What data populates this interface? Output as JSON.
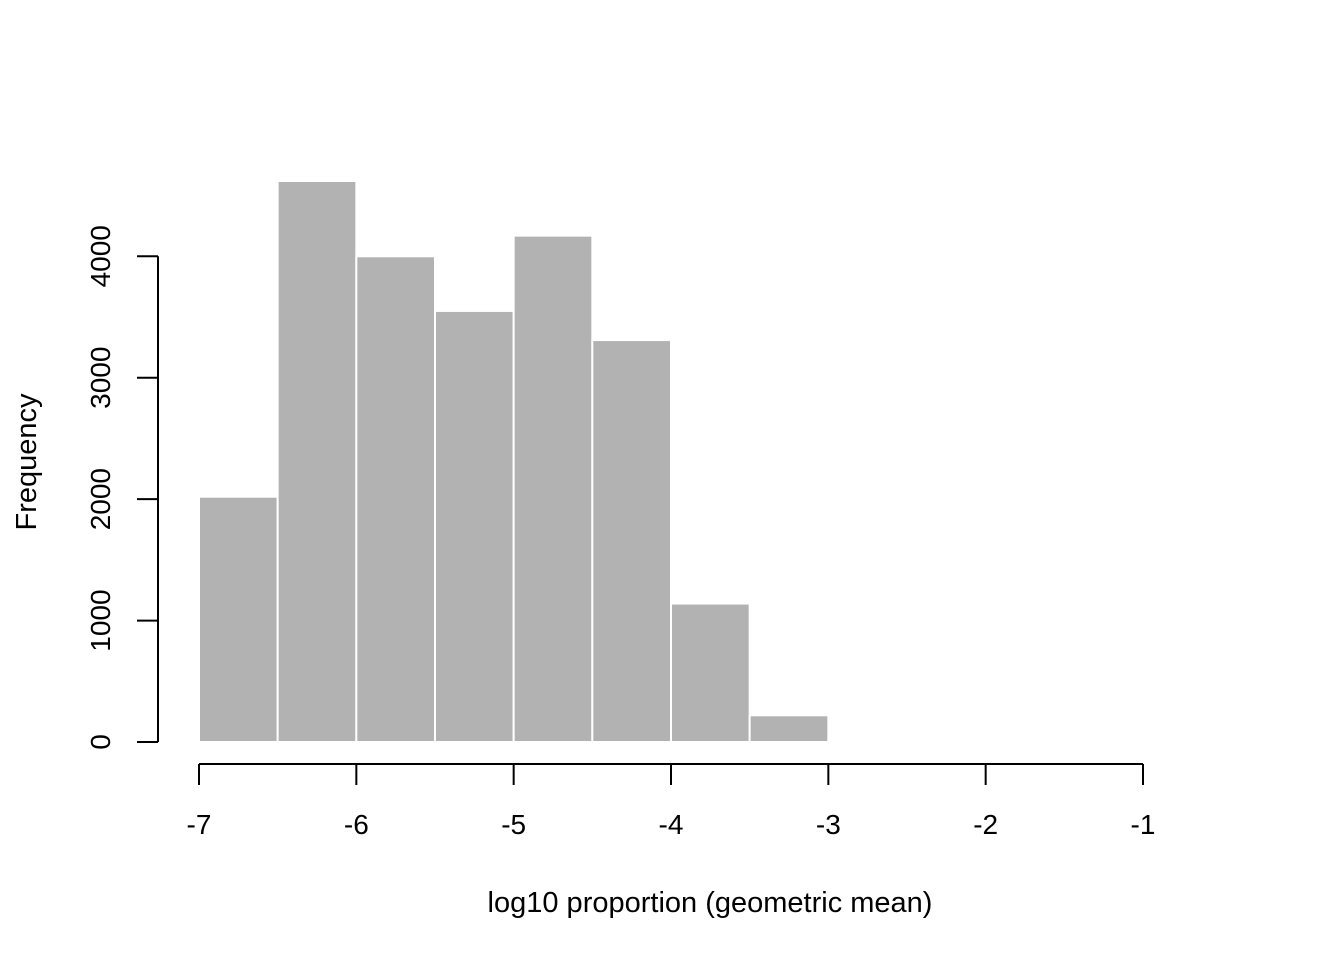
{
  "chart_data": {
    "type": "bar",
    "subtype": "histogram",
    "title": "",
    "xlabel": "log10 proportion (geometric mean)",
    "ylabel": "Frequency",
    "bins": [
      {
        "x0": -7.0,
        "x1": -6.5,
        "count": 2020
      },
      {
        "x0": -6.5,
        "x1": -6.0,
        "count": 4620
      },
      {
        "x0": -6.0,
        "x1": -5.5,
        "count": 4000
      },
      {
        "x0": -5.5,
        "x1": -5.0,
        "count": 3550
      },
      {
        "x0": -5.0,
        "x1": -4.5,
        "count": 4170
      },
      {
        "x0": -4.5,
        "x1": -4.0,
        "count": 3310
      },
      {
        "x0": -4.0,
        "x1": -3.5,
        "count": 1140
      },
      {
        "x0": -3.5,
        "x1": -3.0,
        "count": 220
      },
      {
        "x0": -3.0,
        "x1": -2.5,
        "count": 10
      }
    ],
    "xlim": [
      -7,
      -1
    ],
    "ylim": [
      0,
      4620
    ],
    "xticks": [
      -7,
      -6,
      -5,
      -4,
      -3,
      -2,
      -1
    ],
    "yticks": [
      0,
      1000,
      2000,
      3000,
      4000
    ],
    "bar_color": "#b2b2b2",
    "bar_edge_color": "#ffffff",
    "grid": false,
    "legend": "none"
  }
}
